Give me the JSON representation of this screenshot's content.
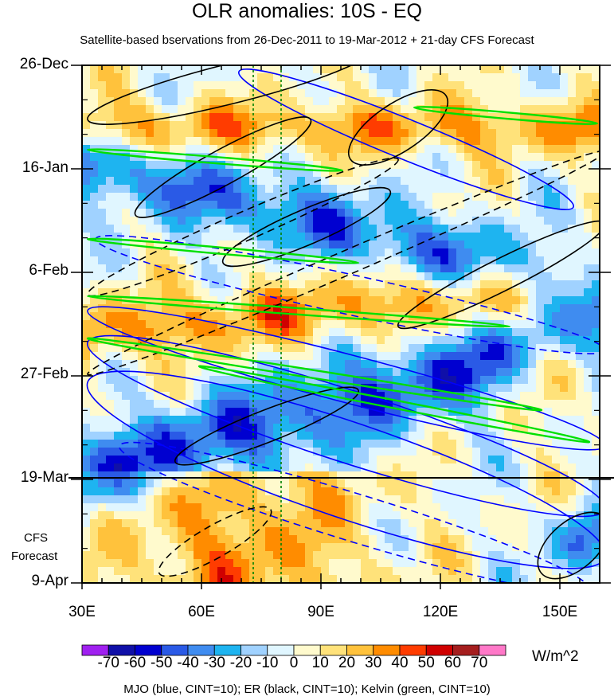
{
  "chart_data": {
    "type": "heatmap",
    "title": "OLR anomalies: 10S - EQ",
    "subtitle": "Satellite-based bservations from 26-Dec-2011 to 19-Mar-2012 + 21-day CFS Forecast",
    "x_ticks": [
      {
        "label": "30E",
        "lon": 30
      },
      {
        "label": "60E",
        "lon": 60
      },
      {
        "label": "90E",
        "lon": 90
      },
      {
        "label": "120E",
        "lon": 120
      },
      {
        "label": "150E",
        "lon": 150
      }
    ],
    "xlim": [
      30,
      160
    ],
    "y_ticks": [
      "26-Dec",
      "16-Jan",
      "6-Feb",
      "27-Feb",
      "19-Mar",
      "9-Apr"
    ],
    "forecast_label_line1": "CFS",
    "forecast_label_line2": "Forecast",
    "reference_lines_lon": [
      73,
      80
    ],
    "colorbar": {
      "units": "W/m^2",
      "tick_labels": [
        "-70",
        "-60",
        "-50",
        "-40",
        "-30",
        "-20",
        "-10",
        "0",
        "10",
        "20",
        "30",
        "40",
        "50",
        "60",
        "70"
      ],
      "colors": [
        "#a020f0",
        "#1010a8",
        "#0000d0",
        "#2a5ae6",
        "#3f8cf0",
        "#1eb4f0",
        "#a0d2ff",
        "#e0f6ff",
        "#fffacd",
        "#ffe27a",
        "#ffc23c",
        "#ff8c00",
        "#ff3c00",
        "#d00000",
        "#a51e1e",
        "#ff78c8"
      ]
    },
    "contours_legend": "MJO (blue, CINT=10); ER (black, CINT=10); Kelvin (green, CINT=10)",
    "contour_colors": {
      "MJO": "#0000ff",
      "ER": "#000000",
      "Kelvin": "#00e000"
    }
  }
}
